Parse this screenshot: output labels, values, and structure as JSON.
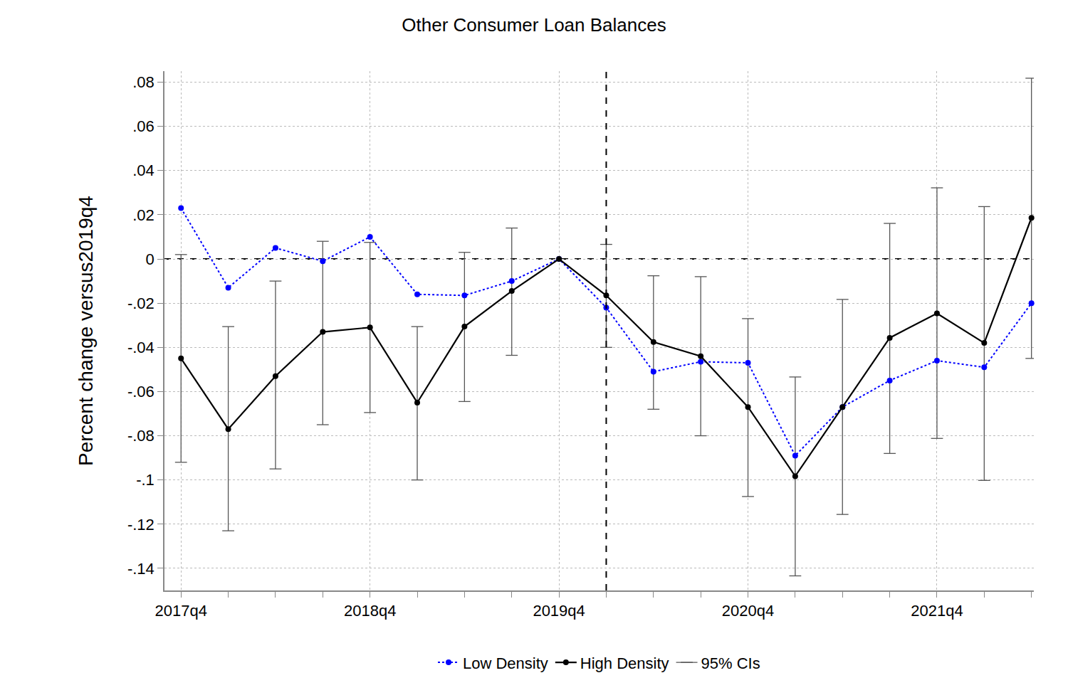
{
  "chart_data": {
    "type": "line",
    "title": "Other Consumer Loan Balances",
    "y_label": "Percent change versus2019q4",
    "categories": [
      "2017q4",
      null,
      null,
      null,
      "2018q4",
      null,
      null,
      null,
      "2019q4",
      null,
      null,
      null,
      "2020q4",
      null,
      null,
      null,
      "2021q4",
      null,
      null
    ],
    "series": [
      {
        "name": "Low Density",
        "color": "#0000ff",
        "line_style": "dotted",
        "marker": "circle",
        "values": [
          0.023,
          -0.013,
          0.005,
          -0.001,
          0.01,
          -0.016,
          -0.0165,
          -0.01,
          0,
          -0.022,
          -0.051,
          -0.0465,
          -0.047,
          -0.089,
          -0.067,
          -0.055,
          -0.046,
          -0.049,
          -0.02
        ]
      },
      {
        "name": "High Density",
        "color": "#000000",
        "line_style": "solid",
        "marker": "circle",
        "values": [
          -0.045,
          -0.077,
          -0.053,
          -0.033,
          -0.031,
          -0.065,
          -0.0306,
          -0.0145,
          0,
          -0.0165,
          -0.0376,
          -0.044,
          -0.067,
          -0.0983,
          -0.067,
          -0.0357,
          -0.0246,
          -0.038,
          0.0186
        ]
      }
    ],
    "confidence_interval": {
      "name": "95% CIs",
      "color": "#555555",
      "series": "High Density",
      "lower": [
        -0.092,
        -0.123,
        -0.095,
        -0.075,
        -0.0695,
        -0.1,
        -0.0645,
        -0.0436,
        null,
        -0.04,
        -0.068,
        -0.08,
        -0.1075,
        -0.1434,
        -0.1156,
        -0.088,
        -0.0812,
        -0.1002,
        -0.045
      ],
      "upper": [
        0.002,
        -0.0306,
        -0.01,
        0.008,
        0.0075,
        -0.0306,
        0.003,
        0.014,
        null,
        0.0066,
        -0.0076,
        -0.008,
        -0.027,
        -0.0534,
        -0.0183,
        0.0161,
        0.0322,
        0.0237,
        0.0818
      ]
    },
    "vline_position": 9,
    "hline_value": 0,
    "ylim": [
      -0.15,
      0.085
    ],
    "yticks": [
      {
        "value": -0.14,
        "label": "-.14"
      },
      {
        "value": -0.12,
        "label": "-.12"
      },
      {
        "value": -0.1,
        "label": "-.1"
      },
      {
        "value": -0.08,
        "label": "-.08"
      },
      {
        "value": -0.06,
        "label": "-.06"
      },
      {
        "value": -0.04,
        "label": "-.04"
      },
      {
        "value": -0.02,
        "label": "-.02"
      },
      0,
      {
        "value": 0.02,
        "label": ".02"
      },
      {
        "value": 0.04,
        "label": ".04"
      },
      {
        "value": 0.06,
        "label": ".06"
      },
      {
        "value": 0.08,
        "label": ".08"
      }
    ],
    "grid": true,
    "legend": "bottom"
  }
}
